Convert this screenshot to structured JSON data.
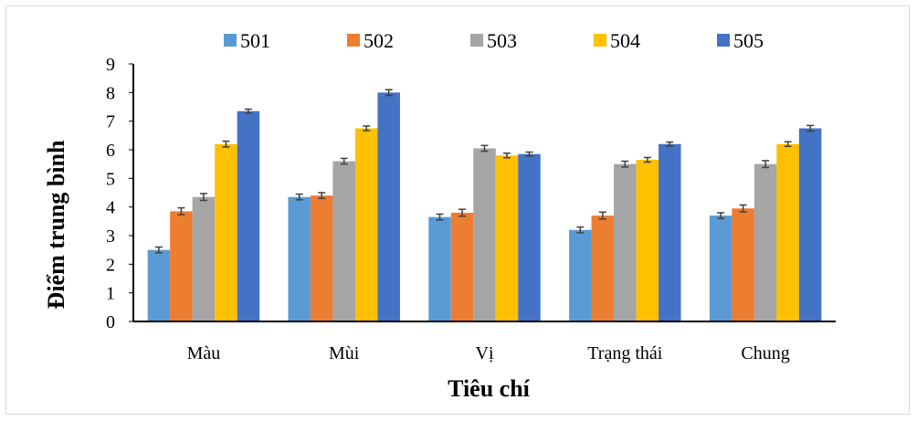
{
  "chart_data": {
    "type": "bar",
    "title": "",
    "xlabel": "Tiêu chí",
    "ylabel": "Điểm trung bình",
    "ylim": [
      0,
      9
    ],
    "yticks": [
      0,
      1,
      2,
      3,
      4,
      5,
      6,
      7,
      8,
      9
    ],
    "categories": [
      "Màu",
      "Mùi",
      "Vị",
      "Trạng thái",
      "Chung"
    ],
    "legend_position": "top",
    "grid": false,
    "series": [
      {
        "name": "501",
        "color": "#5b9bd5",
        "values": [
          2.5,
          4.35,
          3.65,
          3.2,
          3.7
        ],
        "errors": [
          0.1,
          0.1,
          0.1,
          0.1,
          0.1
        ]
      },
      {
        "name": "502",
        "color": "#ed7d31",
        "values": [
          3.85,
          4.4,
          3.8,
          3.7,
          3.95
        ],
        "errors": [
          0.12,
          0.1,
          0.12,
          0.12,
          0.12
        ]
      },
      {
        "name": "503",
        "color": "#a5a5a5",
        "values": [
          4.35,
          5.6,
          6.05,
          5.5,
          5.5
        ],
        "errors": [
          0.12,
          0.1,
          0.1,
          0.1,
          0.12
        ]
      },
      {
        "name": "504",
        "color": "#ffc000",
        "values": [
          6.2,
          6.75,
          5.8,
          5.65,
          6.2
        ],
        "errors": [
          0.1,
          0.08,
          0.08,
          0.08,
          0.08
        ]
      },
      {
        "name": "505",
        "color": "#4472c4",
        "values": [
          7.35,
          8.0,
          5.85,
          6.2,
          6.75
        ],
        "errors": [
          0.07,
          0.1,
          0.07,
          0.07,
          0.1
        ]
      }
    ]
  }
}
